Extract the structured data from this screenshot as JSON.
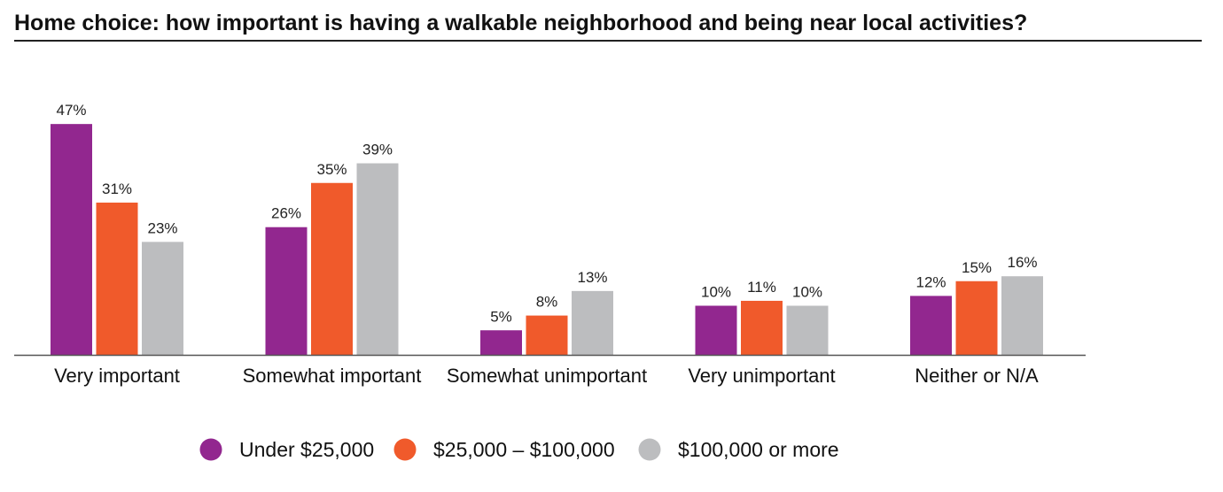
{
  "chart_data": {
    "type": "bar",
    "title": "Home choice: how important is having a walkable neighborhood and being near local activities?",
    "xlabel": "",
    "ylabel": "",
    "ylim": [
      0,
      50
    ],
    "grid": false,
    "legend_position": "bottom",
    "categories": [
      "Very important",
      "Somewhat important",
      "Somewhat unimportant",
      "Very unimportant",
      "Neither or N/A"
    ],
    "series": [
      {
        "name": "Under $25,000",
        "color": "#92278f",
        "values": [
          47,
          26,
          5,
          10,
          12
        ],
        "labels": [
          "47%",
          "26%",
          "5%",
          "10%",
          "12%"
        ]
      },
      {
        "name": "$25,000 – $100,000",
        "color": "#f05a2b",
        "values": [
          31,
          35,
          8,
          11,
          15
        ],
        "labels": [
          "31%",
          "35%",
          "8%",
          "11%",
          "15%"
        ]
      },
      {
        "name": "$100,000 or more",
        "color": "#bcbdbf",
        "values": [
          23,
          39,
          13,
          10,
          16
        ],
        "labels": [
          "23%",
          "39%",
          "13%",
          "10%",
          "16%"
        ]
      }
    ]
  }
}
